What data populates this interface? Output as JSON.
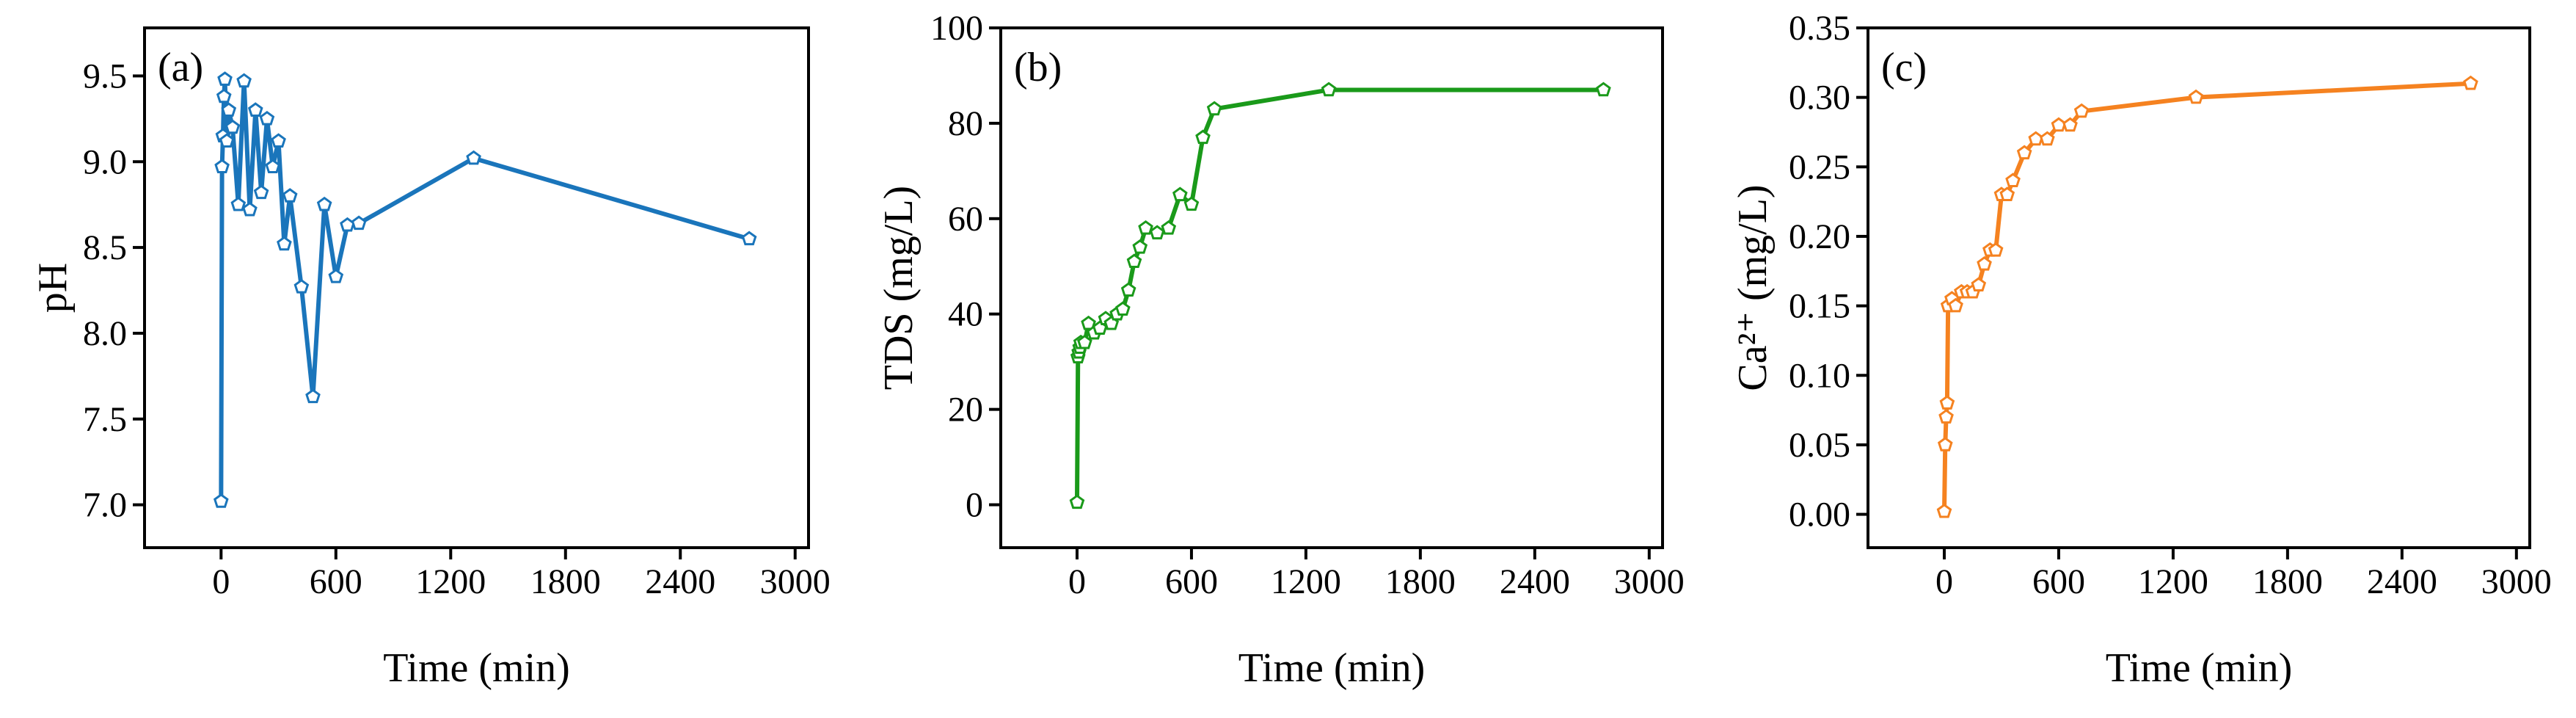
{
  "chart_data": [
    {
      "type": "line",
      "panel_label": "(a)",
      "x_label": "Time (min)",
      "y_label": "pH",
      "x": [
        0,
        5,
        10,
        15,
        20,
        30,
        40,
        60,
        90,
        120,
        150,
        180,
        210,
        240,
        270,
        300,
        330,
        360,
        420,
        480,
        540,
        600,
        660,
        720,
        1320,
        2760
      ],
      "series": [
        {
          "color": "#1a75bb",
          "values": [
            7.02,
            8.97,
            9.15,
            9.38,
            9.48,
            9.12,
            9.3,
            9.2,
            8.75,
            9.47,
            8.72,
            9.3,
            8.82,
            9.25,
            8.97,
            9.12,
            8.52,
            8.8,
            8.27,
            7.63,
            8.75,
            8.33,
            8.63,
            8.64,
            9.02,
            8.55
          ]
        }
      ],
      "xlim": [
        -400,
        3070
      ],
      "ylim": [
        6.75,
        9.78
      ],
      "xticks": [
        0,
        600,
        1200,
        1800,
        2400,
        3000
      ],
      "yticks": [
        {
          "value": 7,
          "label": "7.0"
        },
        {
          "value": 7.5,
          "label": "7.5"
        },
        {
          "value": 8,
          "label": "8.0"
        },
        {
          "value": 8.5,
          "label": "8.5"
        },
        {
          "value": 9,
          "label": "9.0"
        },
        {
          "value": 9.5,
          "label": "9.5"
        }
      ]
    },
    {
      "type": "line",
      "panel_label": "(b)",
      "x_label": "Time (min)",
      "y_label": "TDS (mg/L)",
      "x": [
        0,
        5,
        10,
        15,
        20,
        40,
        60,
        90,
        120,
        150,
        180,
        210,
        240,
        270,
        300,
        330,
        360,
        420,
        480,
        540,
        600,
        660,
        720,
        1320,
        2760
      ],
      "series": [
        {
          "color": "#1a9a1a",
          "values": [
            0.5,
            31,
            32,
            33,
            34,
            34,
            38,
            36,
            37,
            39,
            38,
            40,
            41,
            45,
            51,
            54,
            58,
            57,
            58,
            65,
            63,
            77,
            83,
            87,
            87
          ]
        }
      ],
      "xlim": [
        -400,
        3070
      ],
      "ylim": [
        -9,
        100
      ],
      "xticks": [
        0,
        600,
        1200,
        1800,
        2400,
        3000
      ],
      "yticks": [
        0,
        20,
        40,
        60,
        80,
        100
      ]
    },
    {
      "type": "line",
      "panel_label": "(c)",
      "x_label": "Time (min)",
      "y_label": "Ca²⁺ (mg/L)",
      "x": [
        0,
        5,
        10,
        15,
        20,
        40,
        60,
        90,
        120,
        150,
        180,
        210,
        240,
        270,
        300,
        330,
        360,
        420,
        480,
        540,
        600,
        660,
        720,
        1320,
        2760
      ],
      "series": [
        {
          "color": "#f58220",
          "values": [
            0.002,
            0.05,
            0.07,
            0.08,
            0.15,
            0.155,
            0.15,
            0.16,
            0.16,
            0.16,
            0.165,
            0.18,
            0.19,
            0.19,
            0.23,
            0.23,
            0.24,
            0.26,
            0.27,
            0.27,
            0.28,
            0.28,
            0.29,
            0.3,
            0.31
          ]
        }
      ],
      "xlim": [
        -400,
        3070
      ],
      "ylim": [
        -0.024,
        0.35
      ],
      "xticks": [
        0,
        600,
        1200,
        1800,
        2400,
        3000
      ],
      "yticks": [
        {
          "value": 0,
          "label": "0.00"
        },
        {
          "value": 0.05,
          "label": "0.05"
        },
        {
          "value": 0.1,
          "label": "0.10"
        },
        {
          "value": 0.15,
          "label": "0.15"
        },
        {
          "value": 0.2,
          "label": "0.20"
        },
        {
          "value": 0.25,
          "label": "0.25"
        },
        {
          "value": 0.3,
          "label": "0.30"
        },
        {
          "value": 0.35,
          "label": "0.35"
        }
      ]
    }
  ]
}
